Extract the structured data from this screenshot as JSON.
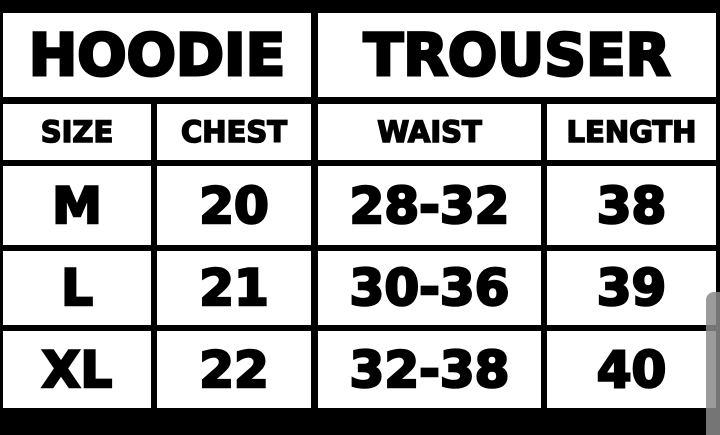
{
  "headers": {
    "group1": "HOODIE",
    "group2": "TROUSER"
  },
  "columns": [
    "SIZE",
    "CHEST",
    "WAIST",
    "LENGTH"
  ],
  "rows": [
    [
      "M",
      "20",
      "28-32",
      "38"
    ],
    [
      "L",
      "21",
      "30-36",
      "39"
    ],
    [
      "XL",
      "22",
      "32-38",
      "40"
    ]
  ]
}
